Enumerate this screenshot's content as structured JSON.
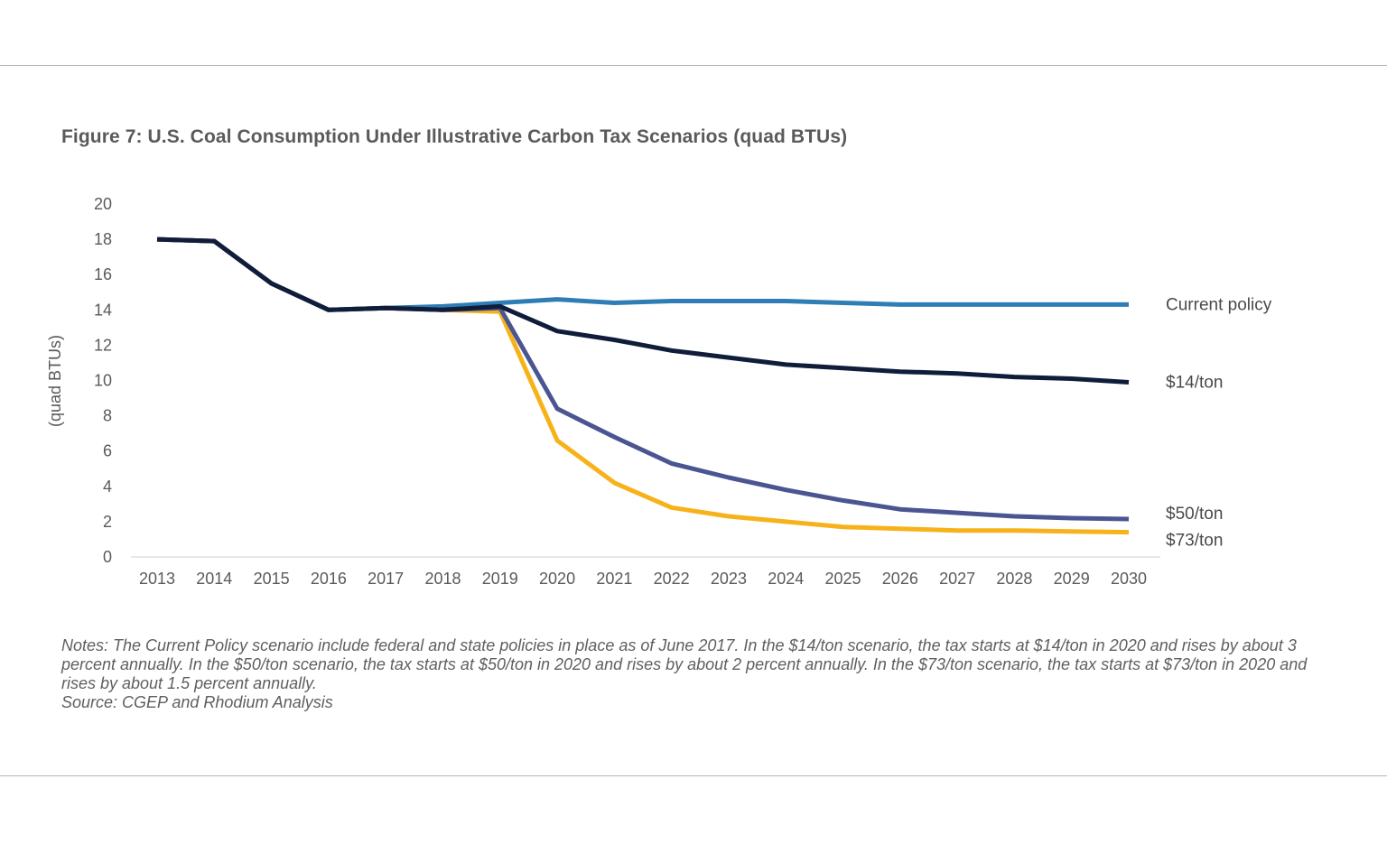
{
  "figure": {
    "title": "Figure 7: U.S. Coal Consumption Under Illustrative Carbon Tax Scenarios (quad BTUs)",
    "notes": "Notes: The Current Policy scenario include federal and state policies in place as of June 2017. In the $14/ton scenario, the tax starts at $14/ton in 2020 and rises by about 3 percent annually. In the $50/ton scenario, the tax starts at $50/ton in 2020 and rises by about 2 percent annually. In the $73/ton scenario, the tax starts at $73/ton in 2020 and rises by about 1.5 percent annually.",
    "source": "Source: CGEP and Rhodium Analysis"
  },
  "chart_data": {
    "type": "line",
    "title": "Figure 7: U.S. Coal Consumption Under Illustrative Carbon Tax Scenarios (quad BTUs)",
    "xlabel": "",
    "ylabel": "(quad BTUs)",
    "ylim": [
      0,
      20
    ],
    "yticks": [
      0,
      2,
      4,
      6,
      8,
      10,
      12,
      14,
      16,
      18,
      20
    ],
    "grid": false,
    "legend": "direct labels at right end of lines",
    "x": [
      "2013",
      "2014",
      "2015",
      "2016",
      "2017",
      "2018",
      "2019",
      "2020",
      "2021",
      "2022",
      "2023",
      "2024",
      "2025",
      "2026",
      "2027",
      "2028",
      "2029",
      "2030"
    ],
    "series": [
      {
        "name": "Current policy",
        "color": "#2e7db5",
        "values": [
          18.0,
          17.9,
          15.5,
          14.0,
          14.1,
          14.2,
          14.4,
          14.6,
          14.4,
          14.5,
          14.5,
          14.5,
          14.4,
          14.3,
          14.3,
          14.3,
          14.3,
          14.3
        ]
      },
      {
        "name": "$73/ton",
        "color": "#f7b21b",
        "values": [
          18.0,
          17.9,
          15.5,
          14.0,
          14.1,
          14.0,
          13.9,
          6.6,
          4.2,
          2.8,
          2.3,
          2.0,
          1.7,
          1.6,
          1.5,
          1.5,
          1.45,
          1.4
        ]
      },
      {
        "name": "$50/ton",
        "color": "#4a5592",
        "values": [
          18.0,
          17.9,
          15.5,
          14.0,
          14.1,
          14.0,
          14.1,
          8.4,
          6.8,
          5.3,
          4.5,
          3.8,
          3.2,
          2.7,
          2.5,
          2.3,
          2.2,
          2.15
        ]
      },
      {
        "name": "$14/ton",
        "color": "#0f1d3a",
        "values": [
          18.0,
          17.9,
          15.5,
          14.0,
          14.1,
          14.0,
          14.2,
          12.8,
          12.3,
          11.7,
          11.3,
          10.9,
          10.7,
          10.5,
          10.4,
          10.2,
          10.1,
          9.9
        ]
      }
    ]
  }
}
